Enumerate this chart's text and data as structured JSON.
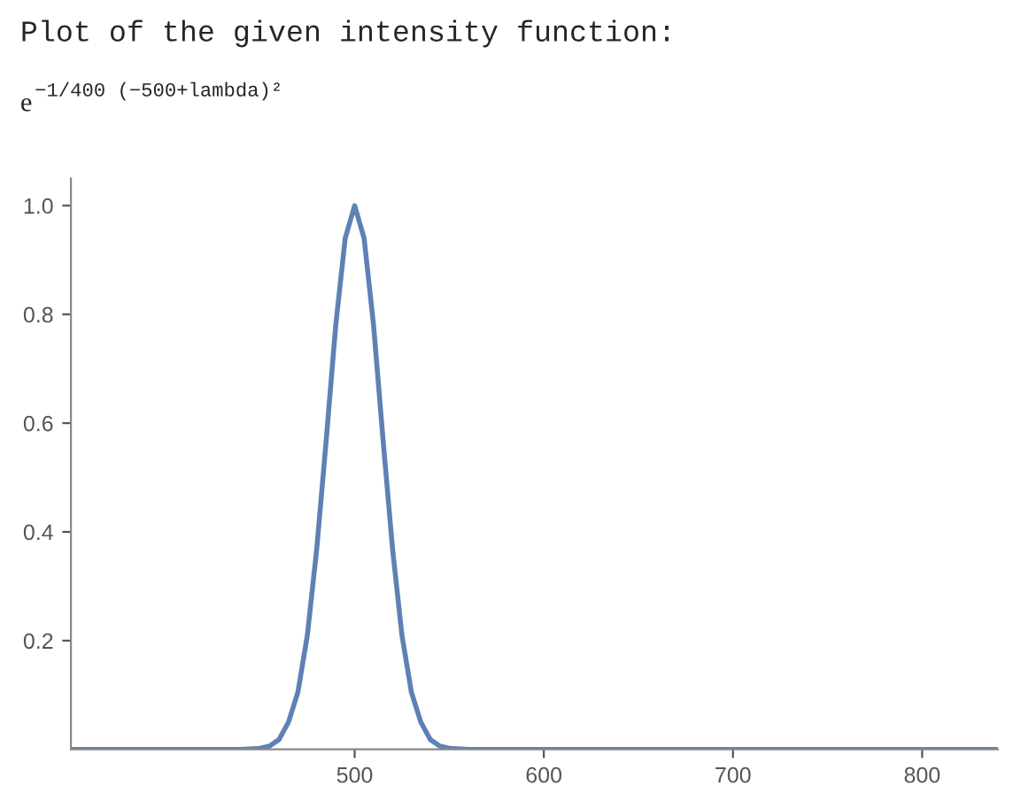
{
  "chart_data": {
    "type": "line",
    "title": "Plot of the given intensity function:",
    "subtitle": "e$^{−1/400 (−500+lambda)²}$",
    "x": [
      350,
      440,
      450,
      455,
      460,
      465,
      470,
      475,
      480,
      485,
      490,
      495,
      500,
      505,
      510,
      515,
      520,
      525,
      530,
      535,
      540,
      545,
      550,
      560,
      840
    ],
    "series": [
      {
        "color": "#5e81b5",
        "values": [
          0,
          0,
          0.002,
          0.006,
          0.018,
          0.05,
          0.105,
          0.21,
          0.37,
          0.57,
          0.78,
          0.94,
          1.0,
          0.94,
          0.78,
          0.57,
          0.37,
          0.21,
          0.105,
          0.05,
          0.018,
          0.006,
          0.002,
          0,
          0
        ]
      }
    ],
    "xlim": [
      350,
      840
    ],
    "ylim": [
      0,
      1.05
    ],
    "xticks": [
      500,
      600,
      700,
      800
    ],
    "yticks": [
      0.2,
      0.4,
      0.6,
      0.8,
      {
        "value": 1,
        "label": "1.0"
      }
    ],
    "grid": false,
    "marker": "none",
    "line_style": "solid"
  }
}
